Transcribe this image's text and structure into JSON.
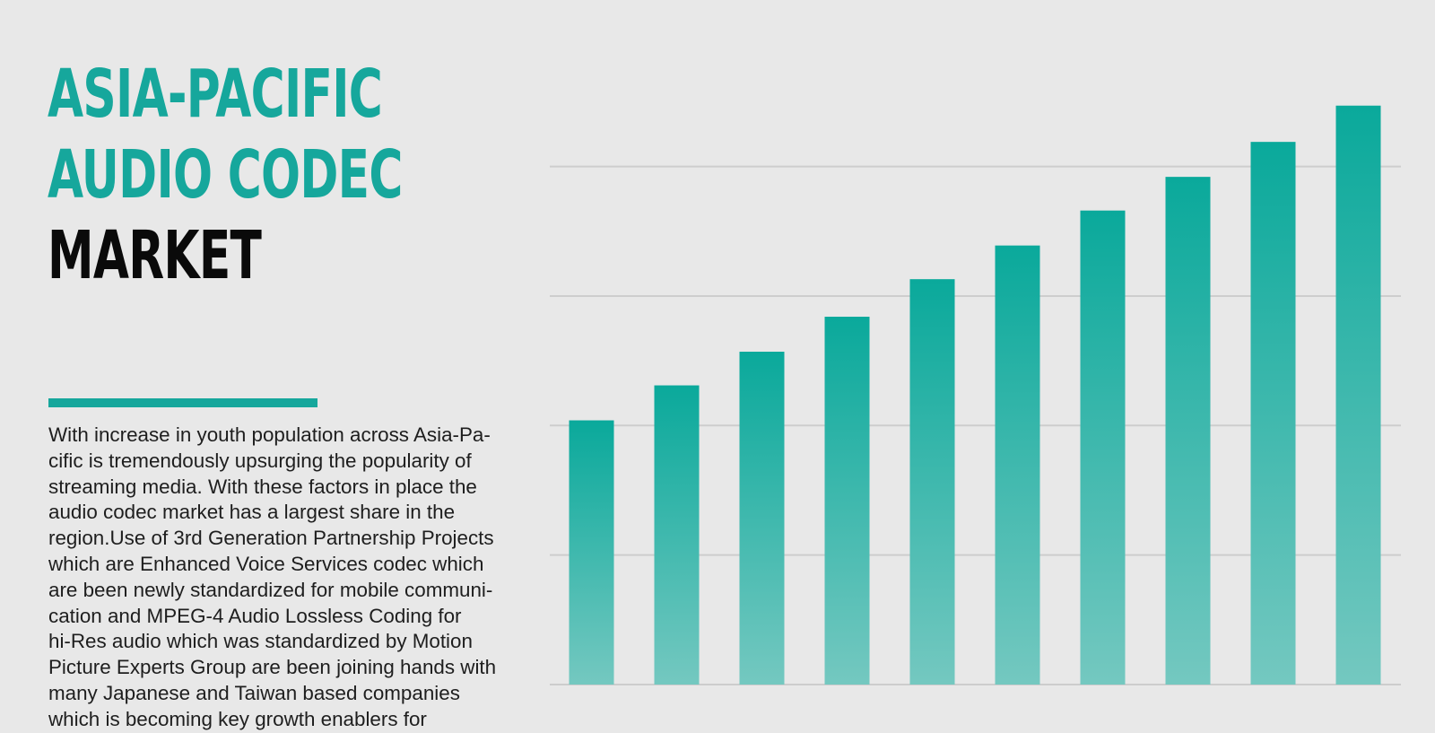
{
  "header": {
    "title_line1": "ASIA-PACIFIC",
    "title_line2": "AUDIO CODEC",
    "title_line3": "MARKET"
  },
  "description": {
    "lines": [
      "With increase in youth population across Asia-Pa-",
      "cific is tremendously upsurging the popularity of",
      "streaming media. With these factors in place the",
      "audio codec market has a largest share in the",
      "region.Use of 3rd Generation Partnership Projects",
      "which are Enhanced Voice Services codec which",
      "are been newly standardized for mobile communi-",
      "cation and MPEG-4 Audio Lossless Coding for",
      "hi-Res audio which was standardized by Motion",
      "Picture Experts Group are been joining hands with",
      "many Japanese and Taiwan based companies",
      "which is becoming key growth enablers for"
    ]
  },
  "colors": {
    "accent": "#16a79c",
    "title_dark": "#0a0a0a",
    "background": "#e8e8e8",
    "bar_top": "#0aa99b",
    "bar_bottom": "#74c8c0",
    "gridline": "#cdcdcd"
  },
  "chart_data": {
    "type": "bar",
    "categories": [
      "",
      "",
      "",
      "",
      "",
      "",
      "",
      "",
      "",
      ""
    ],
    "values": [
      2.04,
      2.31,
      2.57,
      2.84,
      3.13,
      3.39,
      3.66,
      3.92,
      4.19,
      4.47
    ],
    "ylim": [
      0,
      4.87
    ],
    "gridlines": [
      1,
      2,
      3,
      4
    ],
    "grid": true,
    "legend": "none",
    "title": "",
    "xlabel": "",
    "ylabel": ""
  }
}
